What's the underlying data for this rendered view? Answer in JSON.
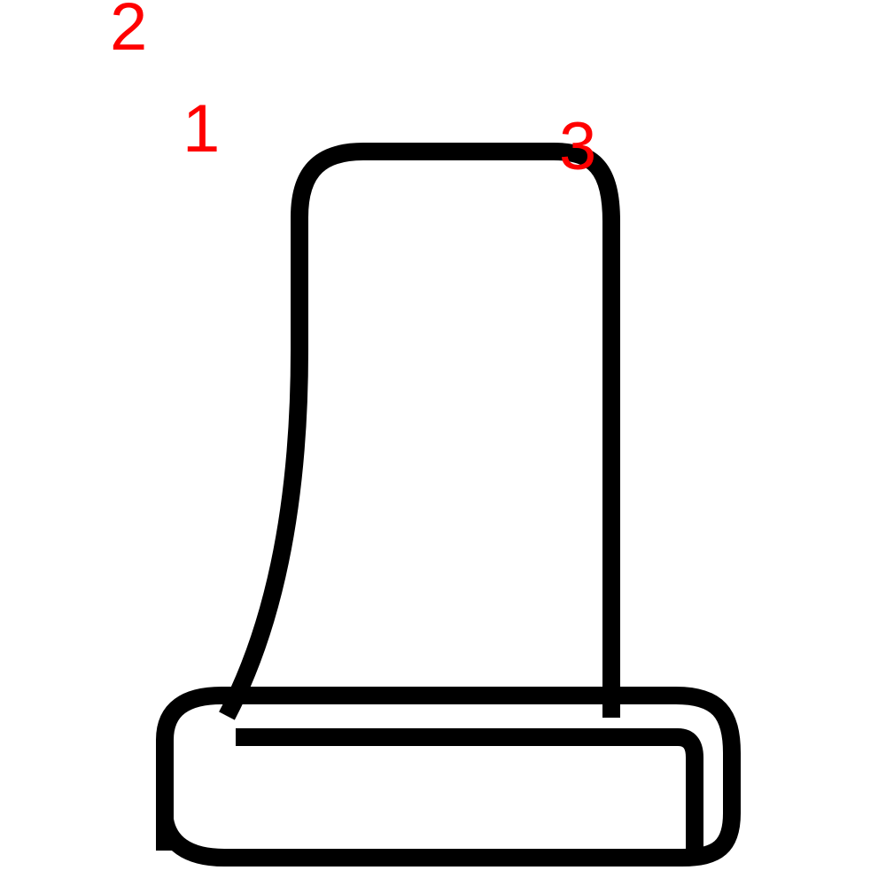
{
  "colors": {
    "background": "#ffffff",
    "stroke": "#000000",
    "label": "#ff0000"
  },
  "labels": {
    "marker_1": "1",
    "marker_2": "2",
    "marker_3": "3"
  }
}
